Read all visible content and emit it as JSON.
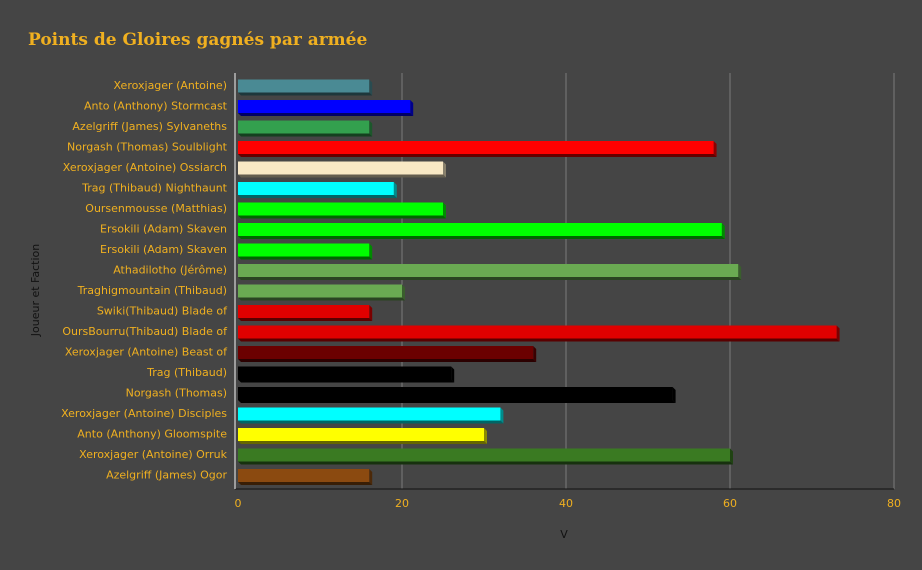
{
  "chart_data": {
    "type": "bar",
    "orientation": "horizontal",
    "title": "Points de Gloires gagnés par armée",
    "xlabel": "V",
    "ylabel": "Joueur et Faction",
    "xlim": [
      0,
      80
    ],
    "xticks": [
      0,
      20,
      40,
      60,
      80
    ],
    "grid": true,
    "categories": [
      "Xeroxjager (Antoine)",
      "Anto (Anthony) Stormcast",
      "Azelgriff (James) Sylvaneths",
      "Norgash (Thomas) Soulblight",
      "Xeroxjager (Antoine) Ossiarch",
      "Trag (Thibaud) Nighthaunt",
      "Oursenmousse (Matthias)",
      "Ersokili (Adam) Skaven",
      "Ersokili (Adam) Skaven",
      "Athadilotho (Jérôme)",
      "Traghigmountain (Thibaud)",
      "Swiki(Thibaud) Blade of",
      "OursBourru(Thibaud) Blade of",
      "Xeroxjager (Antoine) Beast of",
      "Trag (Thibaud)",
      "Norgash (Thomas)",
      "Xeroxjager (Antoine) Disciples",
      "Anto (Anthony) Gloomspite",
      "Xeroxjager (Antoine) Orruk",
      "Azelgriff (James) Ogor"
    ],
    "values": [
      16,
      21,
      16,
      58,
      25,
      19,
      25,
      59,
      16,
      61,
      20,
      16,
      73,
      36,
      26,
      53,
      32,
      30,
      60,
      16
    ],
    "colors": [
      "#4a8a94",
      "#0000ff",
      "#33a04e",
      "#ff0000",
      "#f8e8c4",
      "#00ffff",
      "#00ff00",
      "#00ff00",
      "#00ff00",
      "#6aaa52",
      "#6aaa52",
      "#e00000",
      "#e00000",
      "#6b0000",
      "#000000",
      "#000000",
      "#00ffff",
      "#ffff00",
      "#3a7a22",
      "#8b4a10"
    ]
  }
}
